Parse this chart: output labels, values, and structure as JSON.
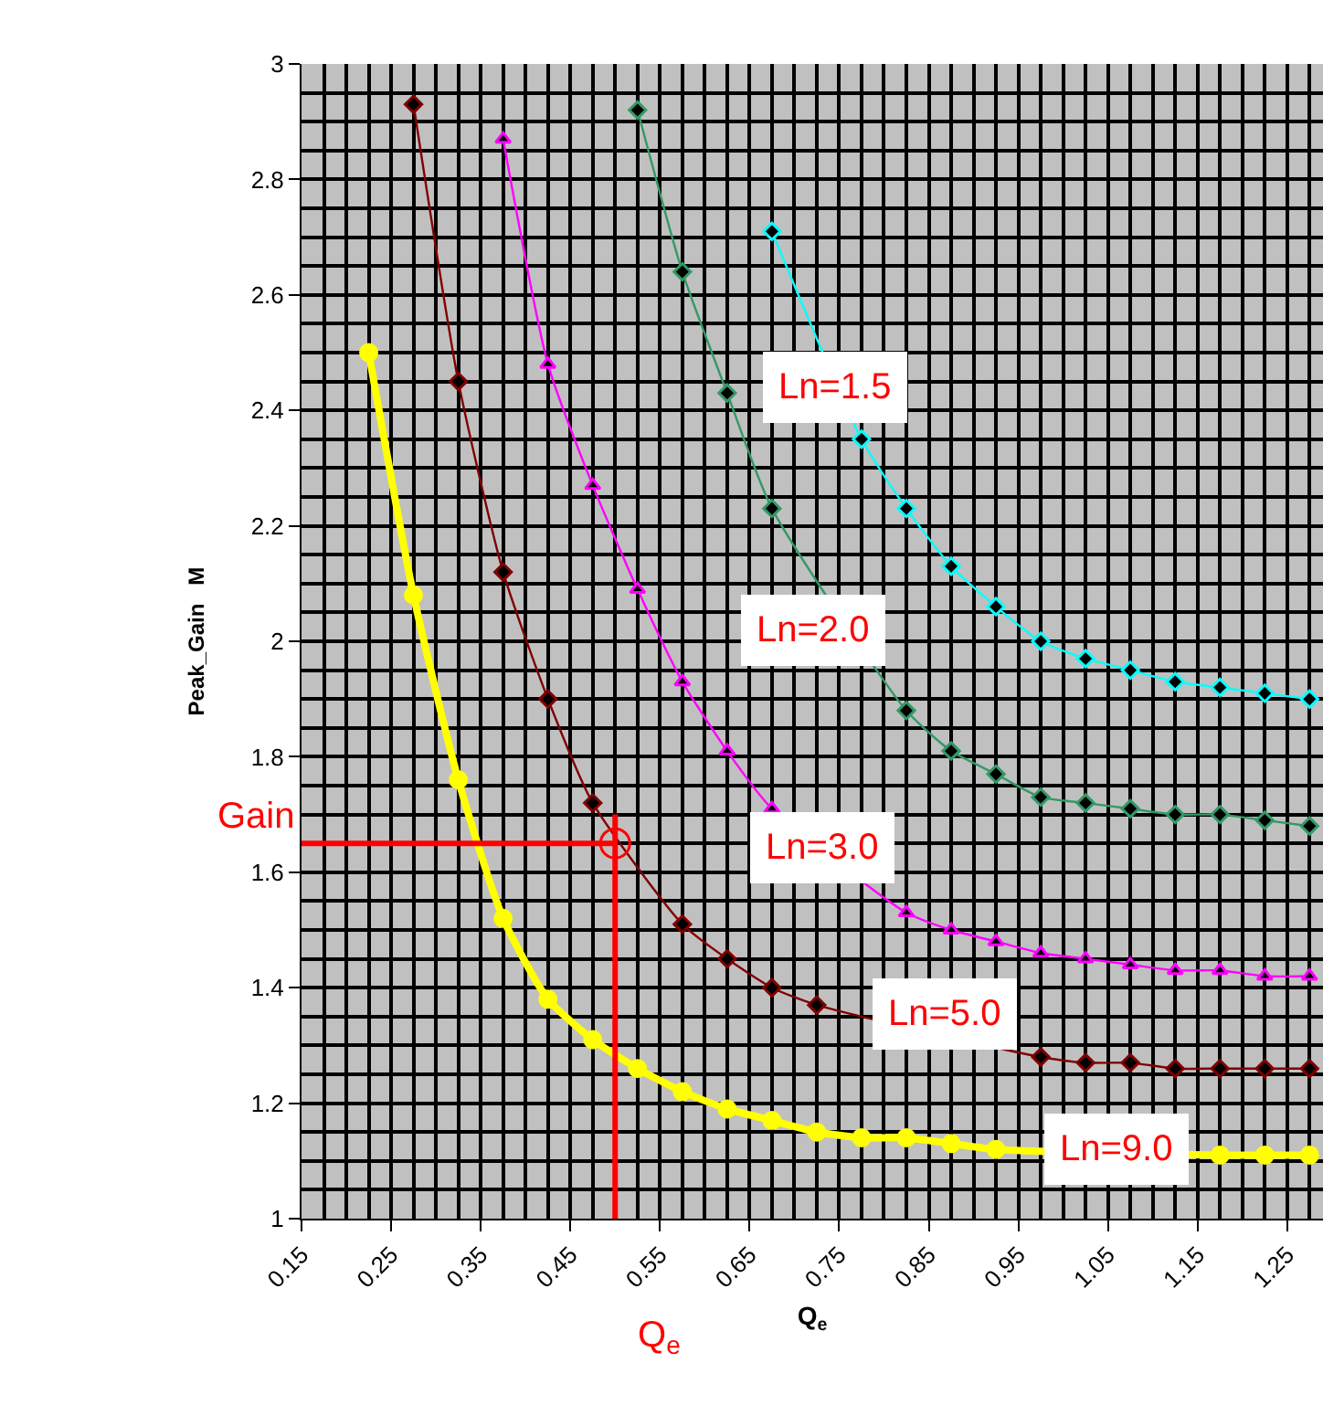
{
  "chart_data": {
    "type": "line",
    "xlabel": "Q$_{e}$",
    "ylabel": "Peak_Gain   M",
    "xlim": [
      0.15,
      1.29
    ],
    "ylim": [
      1,
      3
    ],
    "xticks": [
      0.15,
      {
        "value": 0.175,
        "label": null
      },
      {
        "value": 0.2,
        "label": null
      },
      {
        "value": 0.225,
        "label": null
      },
      0.25,
      {
        "value": 0.275,
        "label": null
      },
      {
        "value": 0.3,
        "label": null
      },
      {
        "value": 0.325,
        "label": null
      },
      0.35,
      {
        "value": 0.375,
        "label": null
      },
      {
        "value": 0.4,
        "label": null
      },
      {
        "value": 0.425,
        "label": null
      },
      0.45,
      {
        "value": 0.475,
        "label": null
      },
      {
        "value": 0.5,
        "label": null
      },
      {
        "value": 0.525,
        "label": null
      },
      0.55,
      {
        "value": 0.575,
        "label": null
      },
      {
        "value": 0.6,
        "label": null
      },
      {
        "value": 0.625,
        "label": null
      },
      0.65,
      {
        "value": 0.675,
        "label": null
      },
      {
        "value": 0.7,
        "label": null
      },
      {
        "value": 0.725,
        "label": null
      },
      0.75,
      {
        "value": 0.775,
        "label": null
      },
      {
        "value": 0.8,
        "label": null
      },
      {
        "value": 0.825,
        "label": null
      },
      0.85,
      {
        "value": 0.875,
        "label": null
      },
      {
        "value": 0.9,
        "label": null
      },
      {
        "value": 0.925,
        "label": null
      },
      0.95,
      {
        "value": 0.975,
        "label": null
      },
      {
        "value": 1.0,
        "label": null
      },
      {
        "value": 1.025,
        "label": null
      },
      1.05,
      {
        "value": 1.075,
        "label": null
      },
      {
        "value": 1.1,
        "label": null
      },
      {
        "value": 1.125,
        "label": null
      },
      1.15,
      {
        "value": 1.175,
        "label": null
      },
      {
        "value": 1.2,
        "label": null
      },
      {
        "value": 1.225,
        "label": null
      },
      1.25,
      {
        "value": 1.275,
        "label": null
      }
    ],
    "yticks": [
      1,
      {
        "value": 1.05,
        "label": null
      },
      {
        "value": 1.1,
        "label": null
      },
      {
        "value": 1.15,
        "label": null
      },
      1.2,
      {
        "value": 1.25,
        "label": null
      },
      {
        "value": 1.3,
        "label": null
      },
      {
        "value": 1.35,
        "label": null
      },
      1.4,
      {
        "value": 1.45,
        "label": null
      },
      {
        "value": 1.5,
        "label": null
      },
      {
        "value": 1.55,
        "label": null
      },
      1.6,
      {
        "value": 1.65,
        "label": null
      },
      {
        "value": 1.7,
        "label": null
      },
      {
        "value": 1.75,
        "label": null
      },
      1.8,
      {
        "value": 1.85,
        "label": null
      },
      {
        "value": 1.9,
        "label": null
      },
      {
        "value": 1.95,
        "label": null
      },
      2,
      {
        "value": 2.05,
        "label": null
      },
      {
        "value": 2.1,
        "label": null
      },
      {
        "value": 2.15,
        "label": null
      },
      2.2,
      {
        "value": 2.25,
        "label": null
      },
      {
        "value": 2.3,
        "label": null
      },
      {
        "value": 2.35,
        "label": null
      },
      2.4,
      {
        "value": 2.45,
        "label": null
      },
      {
        "value": 2.5,
        "label": null
      },
      {
        "value": 2.55,
        "label": null
      },
      2.6,
      {
        "value": 2.65,
        "label": null
      },
      {
        "value": 2.7,
        "label": null
      },
      {
        "value": 2.75,
        "label": null
      },
      2.8,
      {
        "value": 2.85,
        "label": null
      },
      {
        "value": 2.9,
        "label": null
      },
      {
        "value": 2.95,
        "label": null
      },
      3
    ],
    "grid": true,
    "series": [
      {
        "color": "#00ffff",
        "marker": "diamond",
        "x": [
          0.675,
          0.775,
          0.825,
          0.875,
          0.925,
          0.975,
          1.025,
          1.075,
          1.125,
          1.175,
          1.225,
          1.275
        ],
        "values": [
          2.71,
          2.35,
          2.23,
          2.13,
          2.06,
          2.0,
          1.97,
          1.95,
          1.93,
          1.92,
          1.91,
          1.9
        ],
        "colors": [
          "#000000",
          "#000000",
          "#000000",
          "#000000",
          "#000000",
          "#000000",
          "#000000",
          "#000000",
          "#000000",
          "#000000",
          "#000000",
          "#000000"
        ]
      },
      {
        "color": "#339966",
        "marker": "diamond",
        "x": [
          0.525,
          0.575,
          0.625,
          0.675,
          0.825,
          0.875,
          0.925,
          0.975,
          1.025,
          1.075,
          1.125,
          1.175,
          1.225,
          1.275
        ],
        "values": [
          2.92,
          2.64,
          2.43,
          2.23,
          1.88,
          1.81,
          1.77,
          1.73,
          1.72,
          1.71,
          1.7,
          1.7,
          1.69,
          1.68
        ],
        "colors": [
          "#000000",
          "#000000",
          "#000000",
          "#000000",
          "#000000",
          "#000000",
          "#000000",
          "#000000",
          "#000000",
          "#000000",
          "#000000",
          "#000000",
          "#000000",
          "#000000"
        ]
      },
      {
        "color": "#ff00ff",
        "marker": "triangle",
        "x": [
          0.375,
          0.425,
          0.475,
          0.525,
          0.575,
          0.625,
          0.675,
          0.825,
          0.875,
          0.925,
          0.975,
          1.025,
          1.075,
          1.125,
          1.175,
          1.225,
          1.275
        ],
        "values": [
          2.87,
          2.48,
          2.27,
          2.09,
          1.93,
          1.81,
          1.71,
          1.53,
          1.5,
          1.48,
          1.46,
          1.45,
          1.44,
          1.43,
          1.43,
          1.42,
          1.42
        ],
        "colors": [
          "#000000",
          "#000000",
          "#000000",
          "#000000",
          "#000000",
          "#000000",
          "#000000",
          "#000000",
          "#000000",
          "#000000",
          "#000000",
          "#000000",
          "#000000",
          "#000000",
          "#000000",
          "#000000",
          "#000000"
        ]
      },
      {
        "color": "#800000",
        "marker": "diamond",
        "x": [
          0.275,
          0.325,
          0.375,
          0.425,
          0.475,
          0.575,
          0.625,
          0.675,
          0.725,
          0.975,
          1.025,
          1.075,
          1.125,
          1.175,
          1.225,
          1.275
        ],
        "values": [
          2.93,
          2.45,
          2.12,
          1.9,
          1.72,
          1.51,
          1.45,
          1.4,
          1.37,
          1.28,
          1.27,
          1.27,
          1.26,
          1.26,
          1.26,
          1.26
        ],
        "colors": [
          "#000000",
          "#000000",
          "#000000",
          "#000000",
          "#000000",
          "#000000",
          "#000000",
          "#000000",
          "#000000",
          "#000000",
          "#000000",
          "#000000",
          "#000000",
          "#000000",
          "#000000",
          "#000000"
        ]
      },
      {
        "color": "#ffff00",
        "marker": "circle",
        "x": [
          0.225,
          0.275,
          0.325,
          0.375,
          0.425,
          0.475,
          0.525,
          0.575,
          0.625,
          0.675,
          0.725,
          0.775,
          0.825,
          0.875,
          0.925,
          1.175,
          1.225,
          1.275
        ],
        "values": [
          2.5,
          2.08,
          1.76,
          1.52,
          1.38,
          1.31,
          1.26,
          1.22,
          1.19,
          1.17,
          1.15,
          1.14,
          1.14,
          1.13,
          1.12,
          1.11,
          1.11,
          1.11
        ]
      },
      {
        "color": "#ff0000",
        "marker": "none",
        "x": [
          0.15,
          0.5
        ],
        "values": [
          1.65,
          1.65
        ]
      },
      {
        "color": "#ff0000",
        "marker": "none",
        "x": [
          0.5,
          0.5
        ],
        "values": [
          1,
          1.7
        ]
      },
      {
        "type": "scatter",
        "color": "#ff0000",
        "marker": "circle",
        "x": [
          0.5
        ],
        "values": [
          1.65
        ]
      }
    ],
    "annotations": [
      {
        "text": "Ln=1.5",
        "x": 0.745,
        "y": 2.44
      },
      "Ln=2.0",
      "Ln=3.0",
      "Ln=5.0",
      {
        "text": "Ln=9.0",
        "x": 1.06,
        "y": 1.12
      },
      {
        "text": "Gain",
        "x": 0.15,
        "y": 1.65
      },
      "Q$_{e}$"
    ]
  }
}
